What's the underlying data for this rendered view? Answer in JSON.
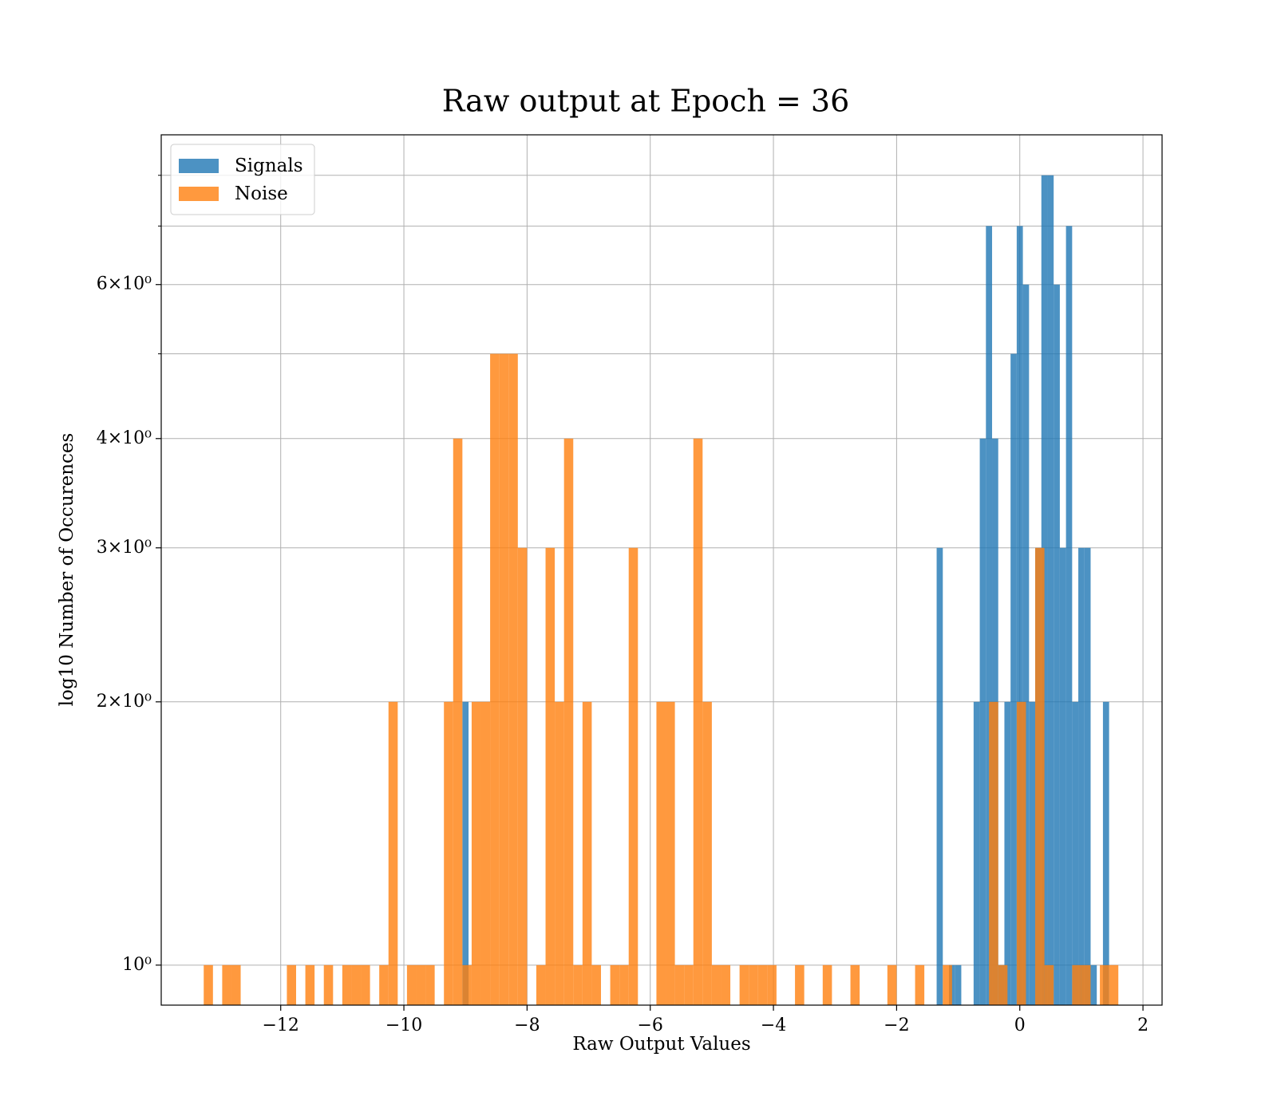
{
  "chart_data": {
    "type": "histogram",
    "title": "Raw output at Epoch = 36",
    "x_label": "Raw Output Values",
    "y_label": "log10 Number of Occurences",
    "log_y": true,
    "grid": true,
    "legend": "upper left",
    "alpha": 0.8,
    "xlim": [
      -13.94,
      2.31
    ],
    "ylim": [
      0.9,
      8.9
    ],
    "xticks": [
      {
        "value": -12,
        "label": "−12"
      },
      {
        "value": -10,
        "label": "−10"
      },
      {
        "value": -8,
        "label": "−8"
      },
      {
        "value": -6,
        "label": "−6"
      },
      {
        "value": -4,
        "label": "−4"
      },
      {
        "value": -2,
        "label": "−2"
      },
      0,
      2
    ],
    "yticks": [
      {
        "value": 1,
        "label": "10⁰"
      },
      {
        "value": 2,
        "label": "2×10⁰"
      },
      {
        "value": 3,
        "label": "3×10⁰"
      },
      {
        "value": 4,
        "label": "4×10⁰"
      },
      {
        "value": 6,
        "label": "6×10⁰"
      }
    ],
    "y_minor_ticks": [
      5,
      7,
      8
    ],
    "series": [
      {
        "name": "Signals",
        "color": "#1f77b4",
        "bins": [
          -9.05,
          -8.95,
          -8.85,
          -8.75,
          -8.65,
          -8.55,
          -8.45,
          -8.35,
          -8.25,
          -8.15,
          -8.05,
          -7.95,
          -7.85,
          -7.75,
          -7.65,
          -7.55,
          -7.45,
          -7.35,
          -7.25,
          -7.15,
          -7.05,
          -6.95,
          -6.85,
          -6.75,
          -6.65,
          -6.55,
          -6.45,
          -6.35,
          -6.25,
          -6.15,
          -6.05,
          -5.95,
          -5.85,
          -5.75,
          -5.65,
          -5.55,
          -5.45,
          -5.35,
          -5.25,
          -5.15,
          -5.05,
          -4.95,
          -4.85,
          -4.75,
          -4.65,
          -4.55,
          -4.45,
          -4.35,
          -4.25,
          -4.15,
          -4.05,
          -3.95,
          -3.85,
          -3.75,
          -3.65,
          -3.55,
          -3.45,
          -3.35,
          -3.25,
          -3.15,
          -3.05,
          -2.95,
          -2.85,
          -2.75,
          -2.65,
          -2.55,
          -2.45,
          -2.35,
          -2.25,
          -2.15,
          -2.05,
          -1.95,
          -1.85,
          -1.75,
          -1.65,
          -1.55,
          -1.45,
          -1.35,
          -1.25,
          -1.15,
          -1.05,
          -0.95,
          -0.85,
          -0.75,
          -0.65,
          -0.55,
          -0.45,
          -0.35,
          -0.25,
          -0.15,
          -0.05,
          0.05,
          0.15,
          0.25,
          0.35,
          0.45,
          0.55,
          0.65,
          0.75,
          0.85,
          0.95,
          1.05,
          1.15,
          1.25,
          1.35,
          1.45
        ],
        "values": [
          2,
          0,
          0,
          0,
          0,
          0,
          0,
          0,
          0,
          0,
          0,
          0,
          0,
          0,
          0,
          0,
          0,
          0,
          0,
          0,
          0,
          0,
          0,
          0,
          0,
          0,
          0,
          0,
          0,
          0,
          0,
          0,
          0,
          0,
          0,
          0,
          0,
          0,
          0,
          0,
          0,
          0,
          0,
          0,
          0,
          0,
          0,
          0,
          0,
          0,
          0,
          0,
          0,
          0,
          0,
          0,
          0,
          0,
          0,
          0,
          0,
          0,
          0,
          0,
          0,
          0,
          0,
          0,
          0,
          0,
          0,
          0,
          0,
          0,
          0,
          0,
          0,
          3,
          0,
          1,
          1,
          0,
          0,
          2,
          4,
          7,
          4,
          1,
          2,
          5,
          7,
          6,
          2,
          3,
          8,
          8,
          6,
          3,
          7,
          2,
          3,
          3,
          1,
          0,
          2
        ]
      },
      {
        "name": "Noise",
        "color": "#ff7f0e",
        "bins": [
          -13.25,
          -13.1,
          -12.95,
          -12.8,
          -12.65,
          -12.5,
          -12.35,
          -12.2,
          -12.05,
          -11.9,
          -11.75,
          -11.6,
          -11.45,
          -11.3,
          -11.15,
          -11,
          -10.85,
          -10.7,
          -10.55,
          -10.4,
          -10.25,
          -10.1,
          -9.95,
          -9.8,
          -9.65,
          -9.5,
          -9.35,
          -9.2,
          -9.05,
          -8.9,
          -8.75,
          -8.6,
          -8.45,
          -8.3,
          -8.15,
          -8,
          -7.85,
          -7.7,
          -7.55,
          -7.4,
          -7.25,
          -7.1,
          -6.95,
          -6.8,
          -6.65,
          -6.5,
          -6.35,
          -6.2,
          -6.05,
          -5.9,
          -5.75,
          -5.6,
          -5.45,
          -5.3,
          -5.15,
          -5,
          -4.85,
          -4.7,
          -4.55,
          -4.4,
          -4.25,
          -4.1,
          -3.95,
          -3.8,
          -3.65,
          -3.5,
          -3.35,
          -3.2,
          -3.05,
          -2.9,
          -2.75,
          -2.6,
          -2.45,
          -2.3,
          -2.15,
          -2,
          -1.85,
          -1.7,
          -1.55,
          -1.4,
          -1.25,
          -1.1,
          -0.95,
          -0.8,
          -0.65,
          -0.5,
          -0.35,
          -0.2,
          -0.05,
          0.1,
          0.25,
          0.4,
          0.55,
          0.7,
          0.85,
          1,
          1.15,
          1.3,
          1.45,
          1.6
        ],
        "values": [
          1,
          0,
          1,
          1,
          0,
          0,
          0,
          0,
          0,
          1,
          0,
          1,
          0,
          1,
          0,
          1,
          1,
          1,
          0,
          1,
          2,
          0,
          1,
          1,
          1,
          0,
          2,
          4,
          1,
          2,
          2,
          5,
          5,
          5,
          3,
          0,
          1,
          3,
          2,
          4,
          1,
          2,
          1,
          0,
          1,
          1,
          3,
          0,
          0,
          2,
          2,
          1,
          1,
          4,
          2,
          1,
          1,
          0,
          1,
          1,
          1,
          1,
          0,
          0,
          1,
          0,
          0,
          1,
          0,
          0,
          1,
          0,
          0,
          0,
          1,
          0,
          0,
          1,
          0,
          0,
          1,
          0,
          0,
          0,
          0,
          2,
          1,
          0,
          2,
          0,
          3,
          1,
          0,
          0,
          1,
          1,
          0,
          1,
          1
        ]
      }
    ]
  }
}
